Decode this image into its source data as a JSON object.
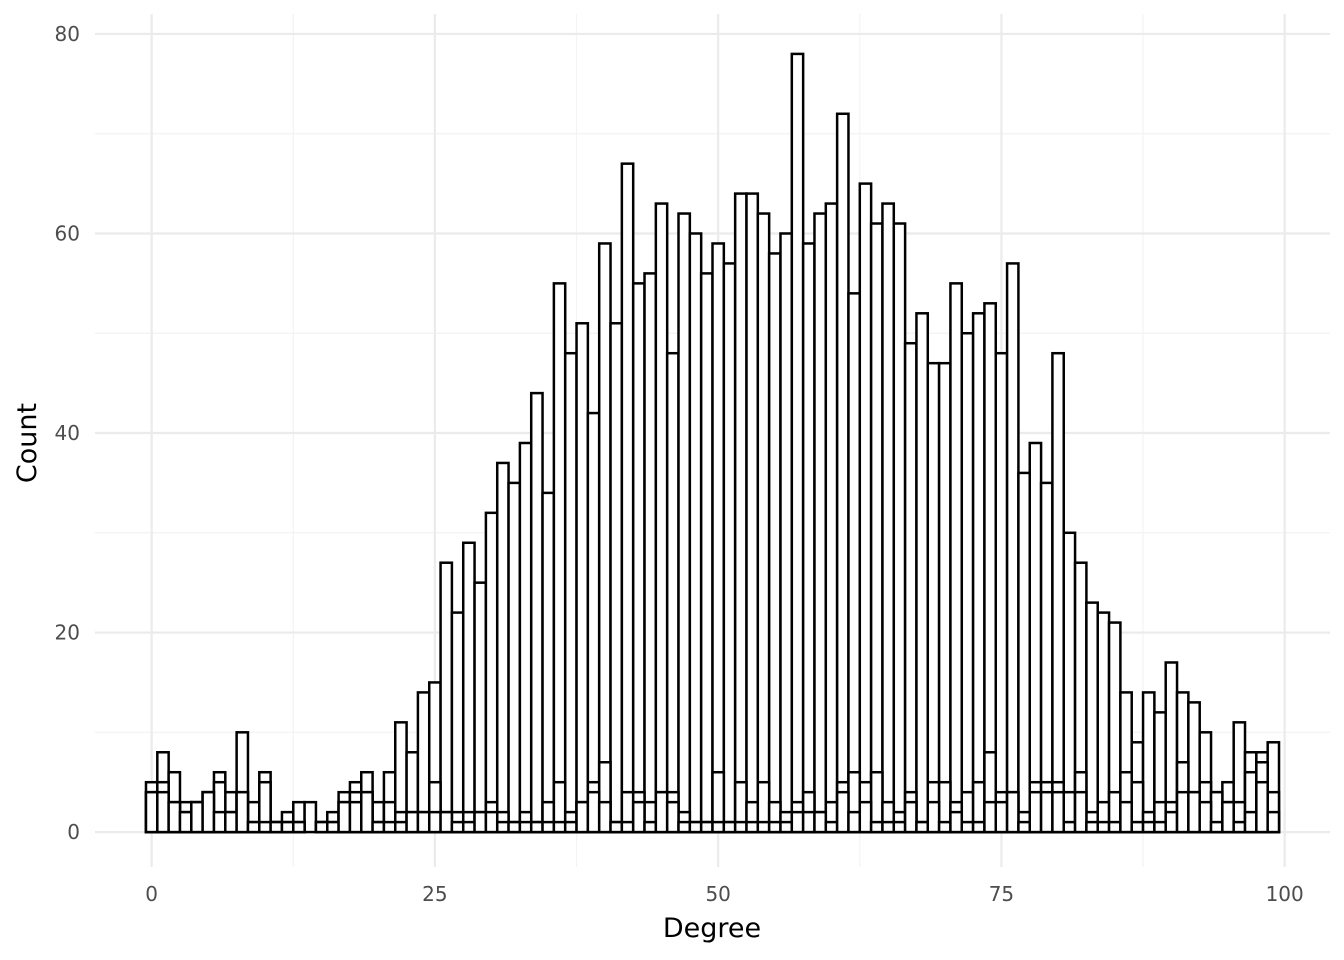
{
  "chart_data": {
    "type": "bar",
    "subtype": "histogram",
    "title": "",
    "xlabel": "Degree",
    "ylabel": "Count",
    "xlim": [
      -5,
      104
    ],
    "ylim": [
      -3.5,
      82
    ],
    "x_ticks": [
      0,
      25,
      50,
      75,
      100
    ],
    "x_tick_labels": [
      "0",
      "25",
      "50",
      "75",
      "100"
    ],
    "y_ticks": [
      0,
      20,
      40,
      60,
      80
    ],
    "y_tick_labels": [
      "0",
      "20",
      "40",
      "60",
      "80"
    ],
    "bin_width": 1,
    "grid": true,
    "legend": "none",
    "bar_fill": "#ffffff",
    "bar_outline": "#000000",
    "series": [
      {
        "x": [
          0,
          1,
          2,
          3,
          4,
          5,
          6,
          7,
          8,
          9,
          10,
          11,
          12,
          13,
          14,
          15,
          16,
          17,
          18,
          19,
          20,
          21,
          22,
          23,
          24,
          25,
          26,
          27,
          28,
          29,
          30,
          31,
          32,
          33,
          34,
          35,
          36,
          37,
          38,
          39,
          40,
          41,
          42,
          43,
          44,
          45,
          46,
          47,
          48,
          49,
          50,
          51,
          52,
          53,
          54,
          55,
          56,
          57,
          58,
          59,
          60,
          61,
          62,
          63,
          64,
          65,
          66,
          67,
          68,
          69,
          70,
          71,
          72,
          73,
          74,
          75,
          76,
          77,
          78,
          79,
          80,
          81,
          82,
          83,
          84,
          85,
          86,
          87,
          88,
          89,
          90,
          91,
          92,
          93,
          94,
          95,
          96,
          97,
          98,
          99
        ],
        "values": [
          5,
          8,
          6,
          3,
          3,
          4,
          6,
          4,
          10,
          3,
          6,
          1,
          2,
          3,
          3,
          1,
          2,
          4,
          5,
          6,
          3,
          6,
          11,
          8,
          14,
          15,
          27,
          22,
          29,
          25,
          32,
          37,
          35,
          39,
          44,
          34,
          55,
          48,
          51,
          42,
          59,
          51,
          67,
          55,
          56,
          63,
          48,
          62,
          60,
          56,
          59,
          57,
          64,
          64,
          62,
          58,
          60,
          78,
          59,
          62,
          63,
          72,
          54,
          65,
          61,
          63,
          61,
          49,
          52,
          47,
          47,
          55,
          50,
          52,
          53,
          48,
          57,
          36,
          39,
          35,
          48,
          30,
          27,
          23,
          22,
          21,
          14,
          9,
          14,
          12,
          17,
          14,
          13,
          10,
          4,
          5,
          11,
          8,
          8,
          9
        ]
      },
      {
        "x": [
          0,
          1,
          2,
          3,
          4,
          5,
          6,
          7,
          8,
          9,
          10,
          11,
          12,
          13,
          14,
          15,
          16,
          17,
          18,
          19,
          20,
          21,
          22,
          23,
          24,
          25,
          26,
          27,
          28,
          29,
          30,
          31,
          32,
          33,
          34,
          35,
          36,
          37,
          38,
          39,
          40,
          41,
          42,
          43,
          44,
          45,
          46,
          47,
          48,
          49,
          50,
          51,
          52,
          53,
          54,
          55,
          56,
          57,
          58,
          59,
          60,
          61,
          62,
          63,
          64,
          65,
          66,
          67,
          68,
          69,
          70,
          71,
          72,
          73,
          74,
          75,
          76,
          77,
          78,
          79,
          80,
          81,
          82,
          83,
          84,
          85,
          86,
          87,
          88,
          89,
          90,
          91,
          92,
          93,
          94,
          95,
          96,
          97,
          98,
          99
        ],
        "values": [
          4,
          5,
          3,
          2,
          3,
          4,
          5,
          2,
          4,
          1,
          5,
          1,
          1,
          1,
          0,
          1,
          1,
          3,
          4,
          4,
          1,
          3,
          2,
          2,
          2,
          5,
          2,
          2,
          2,
          2,
          3,
          2,
          1,
          2,
          1,
          3,
          5,
          2,
          3,
          5,
          7,
          1,
          4,
          4,
          3,
          4,
          4,
          2,
          1,
          1,
          6,
          1,
          5,
          3,
          5,
          3,
          2,
          3,
          4,
          2,
          3,
          5,
          6,
          5,
          6,
          3,
          2,
          4,
          1,
          5,
          5,
          3,
          4,
          5,
          8,
          4,
          4,
          2,
          5,
          5,
          5,
          4,
          6,
          2,
          3,
          4,
          6,
          5,
          2,
          3,
          3,
          7,
          4,
          5,
          4,
          3,
          3,
          6,
          7,
          4
        ]
      },
      {
        "x": [
          0,
          1,
          2,
          3,
          4,
          5,
          6,
          7,
          8,
          9,
          10,
          11,
          12,
          13,
          14,
          15,
          16,
          17,
          18,
          19,
          20,
          21,
          22,
          23,
          24,
          25,
          26,
          27,
          28,
          29,
          30,
          31,
          32,
          33,
          34,
          35,
          36,
          37,
          38,
          39,
          40,
          41,
          42,
          43,
          44,
          45,
          46,
          47,
          48,
          49,
          50,
          51,
          52,
          53,
          54,
          55,
          56,
          57,
          58,
          59,
          60,
          61,
          62,
          63,
          64,
          65,
          66,
          67,
          68,
          69,
          70,
          71,
          72,
          73,
          74,
          75,
          76,
          77,
          78,
          79,
          80,
          81,
          82,
          83,
          84,
          85,
          86,
          87,
          88,
          89,
          90,
          91,
          92,
          93,
          94,
          95,
          96,
          97,
          98,
          99
        ],
        "values": [
          4,
          4,
          3,
          2,
          3,
          4,
          2,
          2,
          4,
          1,
          1,
          1,
          1,
          1,
          0,
          1,
          1,
          3,
          3,
          4,
          1,
          1,
          1,
          2,
          2,
          2,
          2,
          1,
          1,
          2,
          2,
          1,
          1,
          1,
          1,
          1,
          1,
          1,
          3,
          4,
          3,
          1,
          1,
          3,
          1,
          4,
          3,
          1,
          1,
          1,
          1,
          1,
          1,
          1,
          1,
          1,
          1,
          2,
          2,
          2,
          1,
          4,
          2,
          3,
          1,
          1,
          1,
          3,
          1,
          3,
          1,
          2,
          1,
          1,
          3,
          3,
          4,
          1,
          4,
          4,
          4,
          1,
          4,
          1,
          1,
          1,
          3,
          1,
          1,
          1,
          2,
          4,
          4,
          3,
          1,
          3,
          1,
          2,
          5,
          2
        ]
      }
    ]
  }
}
